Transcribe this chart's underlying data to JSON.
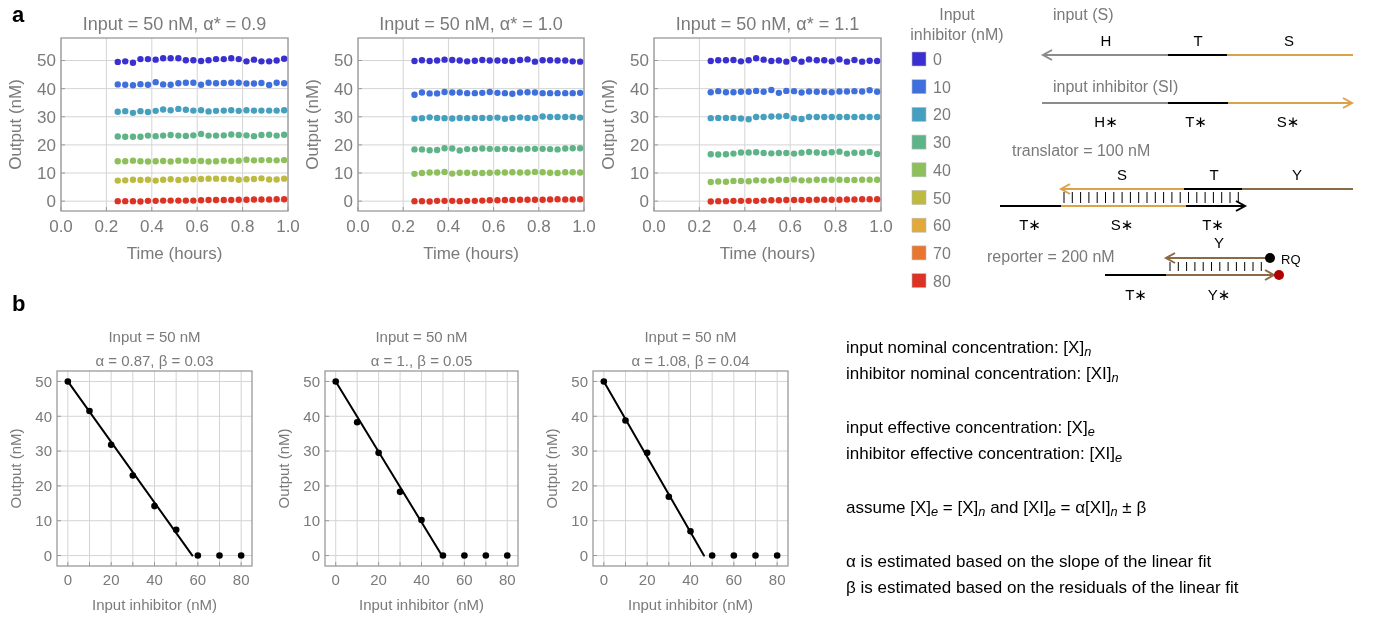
{
  "chart_data": [
    {
      "type": "scatter",
      "title": "Input = 50 nM, α* = 0.9",
      "xlabel": "Time (hours)",
      "ylabel": "Output (nM)",
      "annotations": [
        "a"
      ],
      "xlim": [
        0,
        1
      ],
      "ylim": [
        -3.5,
        58
      ],
      "xticks": [
        {
          "value": 0,
          "label": "0.0"
        },
        {
          "value": 0.2,
          "label": "0.2"
        },
        {
          "value": 0.4,
          "label": "0.4"
        },
        {
          "value": 0.6,
          "label": "0.6"
        },
        {
          "value": 0.8,
          "label": "0.8"
        },
        {
          "value": 1,
          "label": "1.0"
        }
      ],
      "yticks": [
        0,
        10,
        20,
        30,
        40,
        50
      ],
      "grid": true,
      "marker": "circle",
      "x": [
        0.25,
        0.283,
        0.317,
        0.35,
        0.383,
        0.417,
        0.45,
        0.483,
        0.517,
        0.55,
        0.583,
        0.617,
        0.65,
        0.683,
        0.717,
        0.75,
        0.783,
        0.817,
        0.85,
        0.883,
        0.917,
        0.95,
        0.983
      ],
      "series": [
        {
          "color": "#3a2fd0",
          "values": [
            49.5,
            49.7,
            49.2,
            50.5,
            50.5,
            50.3,
            50.8,
            50.8,
            50.8,
            50.1,
            50.1,
            49.8,
            50.1,
            50.5,
            50.5,
            50.8,
            50.5,
            49.7,
            50.3,
            49.7,
            49.7,
            50.0,
            50.6
          ]
        },
        {
          "color": "#3e6fdc",
          "values": [
            41.5,
            41.4,
            41.2,
            41.6,
            41.4,
            42.3,
            41.5,
            41.4,
            41.9,
            42.1,
            42.1,
            41.4,
            42.1,
            41.9,
            42.0,
            42.1,
            42.1,
            41.8,
            41.8,
            42.0,
            41.3,
            42.1,
            41.9
          ]
        },
        {
          "color": "#459fbf",
          "values": [
            31.8,
            32.0,
            31.4,
            32.0,
            31.7,
            32.1,
            32.6,
            32.3,
            32.8,
            32.5,
            32.2,
            32.3,
            31.9,
            32.1,
            32.2,
            32.3,
            32.1,
            32.3,
            32.2,
            32.2,
            32.2,
            32.2,
            32.3
          ]
        },
        {
          "color": "#5fb389",
          "values": [
            23.0,
            22.9,
            22.9,
            22.9,
            23.3,
            23.1,
            23.3,
            23.5,
            23.3,
            23.2,
            23.4,
            23.9,
            23.3,
            23.3,
            23.4,
            23.7,
            23.5,
            23.4,
            23.1,
            23.5,
            23.6,
            23.3,
            23.6
          ]
        },
        {
          "color": "#8dc05a",
          "values": [
            14.2,
            14.2,
            14.4,
            14.2,
            14.1,
            14.2,
            14.3,
            14.1,
            14.4,
            14.4,
            14.3,
            14.3,
            14.1,
            14.2,
            14.4,
            14.3,
            14.4,
            14.7,
            14.5,
            14.6,
            14.6,
            14.5,
            14.6
          ]
        },
        {
          "color": "#bdbb3f",
          "values": [
            7.3,
            7.4,
            7.6,
            7.5,
            7.6,
            7.3,
            7.6,
            7.8,
            7.5,
            7.7,
            7.8,
            7.9,
            8.0,
            8.0,
            7.9,
            7.9,
            7.6,
            7.8,
            7.9,
            8.1,
            7.7,
            7.7,
            8.0
          ]
        },
        {
          "color": "#dc3324",
          "values": [
            0.0,
            0.0,
            0.0,
            -0.1,
            0.1,
            0.1,
            0.2,
            0.2,
            0.2,
            0.2,
            0.2,
            0.3,
            0.4,
            0.4,
            0.4,
            0.4,
            0.5,
            0.5,
            0.6,
            0.6,
            0.6,
            0.7,
            0.7
          ]
        }
      ]
    },
    {
      "type": "scatter",
      "title": "Input = 50 nM, α* = 1.0",
      "xlabel": "Time (hours)",
      "ylabel": "Output (nM)",
      "xlim": [
        0,
        1
      ],
      "ylim": [
        -3.5,
        58
      ],
      "xticks": [
        {
          "value": 0,
          "label": "0.0"
        },
        {
          "value": 0.2,
          "label": "0.2"
        },
        {
          "value": 0.4,
          "label": "0.4"
        },
        {
          "value": 0.6,
          "label": "0.6"
        },
        {
          "value": 0.8,
          "label": "0.8"
        },
        {
          "value": 1,
          "label": "1.0"
        }
      ],
      "yticks": [
        0,
        10,
        20,
        30,
        40,
        50
      ],
      "grid": true,
      "marker": "circle",
      "x": [
        0.25,
        0.283,
        0.317,
        0.35,
        0.383,
        0.417,
        0.45,
        0.483,
        0.517,
        0.55,
        0.583,
        0.617,
        0.65,
        0.683,
        0.717,
        0.75,
        0.783,
        0.817,
        0.85,
        0.883,
        0.917,
        0.95,
        0.983
      ],
      "series": [
        {
          "color": "#3a2fd0",
          "values": [
            49.8,
            50.1,
            49.8,
            50.0,
            50.3,
            50.2,
            50.0,
            49.7,
            49.9,
            50.2,
            50.0,
            50.0,
            49.9,
            49.8,
            50.2,
            50.4,
            49.6,
            50.1,
            50.1,
            50.0,
            50.0,
            49.7,
            49.6
          ]
        },
        {
          "color": "#3e6fdc",
          "values": [
            37.8,
            38.6,
            38.3,
            38.3,
            38.8,
            38.6,
            38.6,
            38.4,
            38.4,
            38.5,
            38.8,
            38.5,
            38.4,
            38.2,
            38.6,
            38.7,
            38.6,
            38.4,
            38.4,
            38.4,
            38.4,
            38.4,
            38.5
          ]
        },
        {
          "color": "#459fbf",
          "values": [
            29.3,
            29.5,
            29.8,
            29.6,
            29.5,
            29.4,
            29.6,
            29.5,
            29.6,
            29.6,
            29.6,
            29.7,
            29.3,
            29.6,
            29.8,
            29.6,
            29.6,
            30.1,
            29.9,
            29.9,
            29.9,
            29.9,
            29.7
          ]
        },
        {
          "color": "#5fb389",
          "values": [
            18.4,
            18.4,
            18.1,
            18.2,
            18.8,
            18.7,
            18.0,
            18.5,
            18.5,
            18.7,
            18.6,
            18.5,
            18.6,
            18.5,
            18.4,
            18.6,
            18.6,
            18.6,
            18.5,
            18.4,
            18.7,
            18.8,
            18.8
          ]
        },
        {
          "color": "#8dc05a",
          "values": [
            9.7,
            10.0,
            10.2,
            10.2,
            10.4,
            9.8,
            10.1,
            10.1,
            10.0,
            10.0,
            10.1,
            10.2,
            10.2,
            10.3,
            10.2,
            10.2,
            10.4,
            10.3,
            10.1,
            10.0,
            10.3,
            10.3,
            10.2
          ]
        },
        {
          "color": "#dc3324",
          "values": [
            0.0,
            0.0,
            -0.1,
            0.1,
            0.1,
            0.1,
            0.0,
            0.1,
            0.1,
            0.2,
            0.3,
            0.3,
            0.4,
            0.4,
            0.5,
            0.5,
            0.5,
            0.5,
            0.6,
            0.7,
            0.6,
            0.6,
            0.7
          ]
        }
      ]
    },
    {
      "type": "scatter",
      "title": "Input = 50 nM, α* = 1.1",
      "xlabel": "Time (hours)",
      "ylabel": "Output (nM)",
      "xlim": [
        0,
        1
      ],
      "ylim": [
        -3.5,
        58
      ],
      "xticks": [
        {
          "value": 0,
          "label": "0.0"
        },
        {
          "value": 0.2,
          "label": "0.2"
        },
        {
          "value": 0.4,
          "label": "0.4"
        },
        {
          "value": 0.6,
          "label": "0.6"
        },
        {
          "value": 0.8,
          "label": "0.8"
        },
        {
          "value": 1,
          "label": "1.0"
        }
      ],
      "yticks": [
        0,
        10,
        20,
        30,
        40,
        50
      ],
      "grid": true,
      "marker": "circle",
      "legend": "right",
      "legend_title": "Input inhibitor (nM)",
      "x": [
        0.25,
        0.283,
        0.317,
        0.35,
        0.383,
        0.417,
        0.45,
        0.483,
        0.517,
        0.55,
        0.583,
        0.617,
        0.65,
        0.683,
        0.717,
        0.75,
        0.783,
        0.817,
        0.85,
        0.883,
        0.917,
        0.95,
        0.983
      ],
      "series": [
        {
          "name": "0",
          "color": "#3a2fd0",
          "values": [
            49.8,
            50.1,
            50.1,
            50.2,
            49.7,
            50.1,
            50.8,
            50.3,
            49.8,
            50.0,
            49.6,
            50.5,
            49.6,
            50.4,
            50.1,
            50.1,
            49.7,
            50.4,
            49.6,
            50.2,
            49.6,
            49.9,
            49.8
          ]
        },
        {
          "name": "10",
          "color": "#3e6fdc",
          "values": [
            38.7,
            39.1,
            38.7,
            38.7,
            38.9,
            38.9,
            39.2,
            38.9,
            39.5,
            38.5,
            39.2,
            39.1,
            38.6,
            39.0,
            38.9,
            38.9,
            38.7,
            39.0,
            39.0,
            39.1,
            39.0,
            39.4,
            38.9
          ]
        },
        {
          "name": "20",
          "color": "#459fbf",
          "values": [
            29.5,
            29.6,
            29.6,
            29.6,
            29.4,
            29.1,
            29.9,
            29.9,
            30.1,
            30.1,
            30.3,
            29.5,
            29.2,
            29.9,
            29.9,
            29.9,
            29.9,
            29.9,
            29.9,
            29.9,
            29.9,
            29.9,
            29.9
          ]
        },
        {
          "name": "30",
          "color": "#5fb389",
          "values": [
            16.7,
            16.6,
            16.7,
            16.9,
            17.3,
            17.3,
            17.4,
            17.1,
            17.0,
            17.1,
            17.1,
            16.9,
            17.2,
            17.5,
            17.3,
            17.1,
            17.4,
            17.6,
            16.9,
            17.2,
            17.2,
            17.5,
            16.8
          ]
        },
        {
          "name": "40",
          "color": "#8dc05a",
          "values": [
            6.8,
            7.0,
            6.9,
            7.2,
            7.2,
            7.1,
            7.4,
            7.3,
            7.3,
            7.6,
            7.5,
            7.7,
            7.4,
            7.4,
            7.6,
            7.5,
            7.6,
            7.6,
            7.5,
            7.5,
            7.6,
            7.6,
            7.6
          ]
        },
        {
          "name": "50",
          "color": "#bdbb3f",
          "values": [
            null,
            null,
            null,
            null,
            null,
            null,
            null,
            null,
            null,
            null,
            null,
            null,
            null,
            null,
            null,
            null,
            null,
            null,
            null,
            null,
            null,
            null,
            null
          ]
        },
        {
          "name": "60",
          "color": "#e0a93a",
          "values": [
            null,
            null,
            null,
            null,
            null,
            null,
            null,
            null,
            null,
            null,
            null,
            null,
            null,
            null,
            null,
            null,
            null,
            null,
            null,
            null,
            null,
            null,
            null
          ]
        },
        {
          "name": "70",
          "color": "#e8762f",
          "values": [
            null,
            null,
            null,
            null,
            null,
            null,
            null,
            null,
            null,
            null,
            null,
            null,
            null,
            null,
            null,
            null,
            null,
            null,
            null,
            null,
            null,
            null,
            null
          ]
        },
        {
          "name": "80",
          "color": "#dc3324",
          "values": [
            -0.1,
            0.0,
            0.0,
            0.1,
            0.1,
            0.1,
            0.1,
            0.2,
            0.3,
            0.3,
            0.4,
            0.4,
            0.4,
            0.4,
            0.5,
            0.5,
            0.5,
            0.5,
            0.6,
            0.6,
            0.7,
            0.7,
            0.7
          ]
        }
      ]
    },
    {
      "type": "scatter",
      "title": "Input = 50 nM",
      "subtitle": "α = 0.87, β = 0.03",
      "xlabel": "Input inhibitor (nM)",
      "ylabel": "Output (nM)",
      "annotations": [
        "b"
      ],
      "xlim": [
        -5,
        85
      ],
      "ylim": [
        -3,
        53
      ],
      "xticks": [
        0,
        {
          "value": 10,
          "label": null
        },
        20,
        {
          "value": 30,
          "label": null
        },
        40,
        {
          "value": 50,
          "label": null
        },
        60,
        {
          "value": 70,
          "label": null
        },
        80
      ],
      "yticks": [
        0,
        10,
        20,
        30,
        40,
        50
      ],
      "grid": true,
      "marker": "circle",
      "x": [
        0,
        10,
        20,
        30,
        40,
        50,
        60,
        70,
        80
      ],
      "series": [
        {
          "type": "line",
          "marker": "none",
          "color": "#000000",
          "x": [
            0,
            57.5
          ],
          "values": [
            50,
            0
          ]
        },
        {
          "color": "#000000",
          "values": [
            50,
            41.5,
            31.8,
            23,
            14.2,
            7.4,
            0,
            0,
            0
          ]
        }
      ]
    },
    {
      "type": "scatter",
      "title": "Input = 50 nM",
      "subtitle": "α = 1., β = 0.05",
      "xlabel": "Input inhibitor (nM)",
      "ylabel": "Output (nM)",
      "xlim": [
        -5,
        85
      ],
      "ylim": [
        -3,
        53
      ],
      "xticks": [
        0,
        {
          "value": 10,
          "label": null
        },
        20,
        {
          "value": 30,
          "label": null
        },
        40,
        {
          "value": 50,
          "label": null
        },
        60,
        {
          "value": 70,
          "label": null
        },
        80
      ],
      "yticks": [
        0,
        10,
        20,
        30,
        40,
        50
      ],
      "grid": true,
      "marker": "circle",
      "x": [
        0,
        10,
        20,
        30,
        40,
        50,
        60,
        70,
        80
      ],
      "series": [
        {
          "type": "line",
          "marker": "none",
          "color": "#000000",
          "x": [
            0,
            49.5
          ],
          "values": [
            50,
            0
          ]
        },
        {
          "color": "#000000",
          "values": [
            50,
            38.3,
            29.5,
            18.3,
            10.2,
            0,
            0,
            0,
            0
          ]
        }
      ]
    },
    {
      "type": "scatter",
      "title": "Input = 50 nM",
      "subtitle": "α = 1.08, β = 0.04",
      "xlabel": "Input inhibitor (nM)",
      "ylabel": "Output (nM)",
      "xlim": [
        -5,
        85
      ],
      "ylim": [
        -3,
        53
      ],
      "xticks": [
        0,
        {
          "value": 10,
          "label": null
        },
        20,
        {
          "value": 30,
          "label": null
        },
        40,
        {
          "value": 50,
          "label": null
        },
        60,
        {
          "value": 70,
          "label": null
        },
        80
      ],
      "yticks": [
        0,
        10,
        20,
        30,
        40,
        50
      ],
      "grid": true,
      "marker": "circle",
      "x": [
        0,
        10,
        20,
        30,
        40,
        50,
        60,
        70,
        80
      ],
      "series": [
        {
          "type": "line",
          "marker": "none",
          "color": "#000000",
          "x": [
            0,
            46.2
          ],
          "values": [
            50,
            0
          ]
        },
        {
          "color": "#000000",
          "values": [
            50,
            38.8,
            29.5,
            16.9,
            7.0,
            0,
            0,
            0,
            0
          ]
        }
      ]
    },
    {
      "type": "other",
      "annotations": [
        "input (S)",
        "H",
        "T",
        "S",
        "input inhibitor (SI)",
        "H∗",
        "T∗",
        "S∗",
        "translator = 100 nM",
        "S",
        "T",
        "Y",
        "T∗",
        "S∗",
        "T∗",
        "reporter = 200 nM",
        "Y",
        "RQ",
        "T∗",
        "Y∗"
      ]
    },
    {
      "type": "other",
      "annotations": [
        "input nominal concentration: [X]$_{n}$",
        "inhibitor nominal concentration: [XI]$_{n}$",
        "input effective concentration: [X]$_{e}$",
        "inhibitor effective concentration: [XI]$_{e}$",
        "assume [X]$_{e}$ = [X]$_{n}$ and [XI]$_{e}$ = α[XI]$_{n}$ ± β",
        "α is estimated based on the slope of the linear fit",
        "β is estimated based on the residuals of the linear fit"
      ]
    }
  ]
}
